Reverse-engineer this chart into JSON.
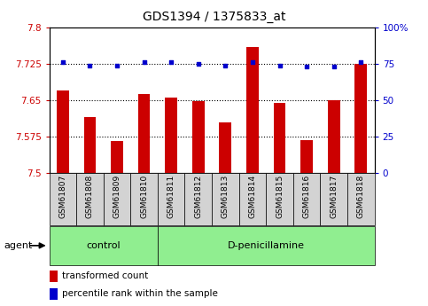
{
  "title": "GDS1394 / 1375833_at",
  "samples": [
    "GSM61807",
    "GSM61808",
    "GSM61809",
    "GSM61810",
    "GSM61811",
    "GSM61812",
    "GSM61813",
    "GSM61814",
    "GSM61815",
    "GSM61816",
    "GSM61817",
    "GSM61818"
  ],
  "bar_values": [
    7.67,
    7.615,
    7.565,
    7.663,
    7.655,
    7.648,
    7.605,
    7.76,
    7.645,
    7.568,
    7.65,
    7.725
  ],
  "dot_values": [
    76,
    74,
    74,
    76,
    76,
    75,
    74,
    76,
    74,
    73,
    73,
    76
  ],
  "bar_color": "#cc0000",
  "dot_color": "#0000cc",
  "ylim_left": [
    7.5,
    7.8
  ],
  "ylim_right": [
    0,
    100
  ],
  "yticks_left": [
    7.5,
    7.575,
    7.65,
    7.725,
    7.8
  ],
  "ytick_labels_left": [
    "7.5",
    "7.575",
    "7.65",
    "7.725",
    "7.8"
  ],
  "yticks_right": [
    0,
    25,
    50,
    75,
    100
  ],
  "ytick_labels_right": [
    "0",
    "25",
    "50",
    "75",
    "100%"
  ],
  "hlines": [
    7.725,
    7.65,
    7.575
  ],
  "control_samples": 4,
  "control_label": "control",
  "treatment_label": "D-penicillamine",
  "agent_label": "agent",
  "legend_bar_label": "transformed count",
  "legend_dot_label": "percentile rank within the sample",
  "control_bg": "#90ee90",
  "treatment_bg": "#90ee90",
  "tick_bg": "#d3d3d3",
  "plot_bg": "#ffffff",
  "left_tick_color": "#cc0000",
  "right_tick_color": "#0000cc",
  "title_fontsize": 10,
  "tick_fontsize": 7.5,
  "label_fontsize": 8
}
